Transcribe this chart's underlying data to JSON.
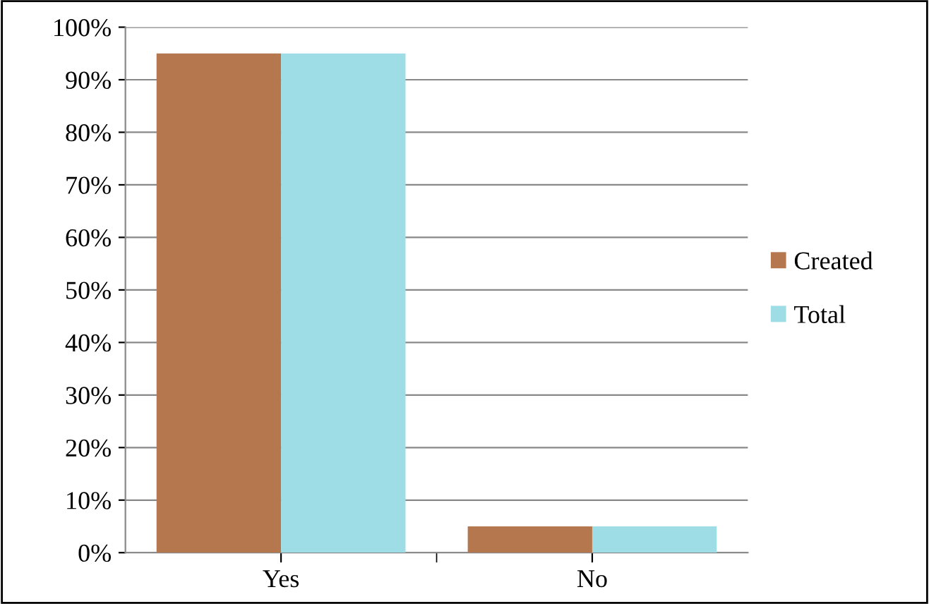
{
  "chart_data": {
    "type": "bar",
    "categories": [
      "Yes",
      "No"
    ],
    "series": [
      {
        "name": "Created",
        "color": "#b5784e",
        "values": [
          95,
          5
        ]
      },
      {
        "name": "Total",
        "color": "#9edde6",
        "values": [
          95,
          5
        ]
      }
    ],
    "ylim": [
      0,
      100
    ],
    "yticks": [
      {
        "value": 0,
        "label": "0%"
      },
      {
        "value": 10,
        "label": "10%"
      },
      {
        "value": 20,
        "label": "20%"
      },
      {
        "value": 30,
        "label": "30%"
      },
      {
        "value": 40,
        "label": "40%"
      },
      {
        "value": 50,
        "label": "50%"
      },
      {
        "value": 60,
        "label": "60%"
      },
      {
        "value": 70,
        "label": "70%"
      },
      {
        "value": 80,
        "label": "80%"
      },
      {
        "value": 90,
        "label": "90%"
      },
      {
        "value": 100,
        "label": "100%"
      }
    ],
    "grid": "y",
    "legend": "right"
  }
}
